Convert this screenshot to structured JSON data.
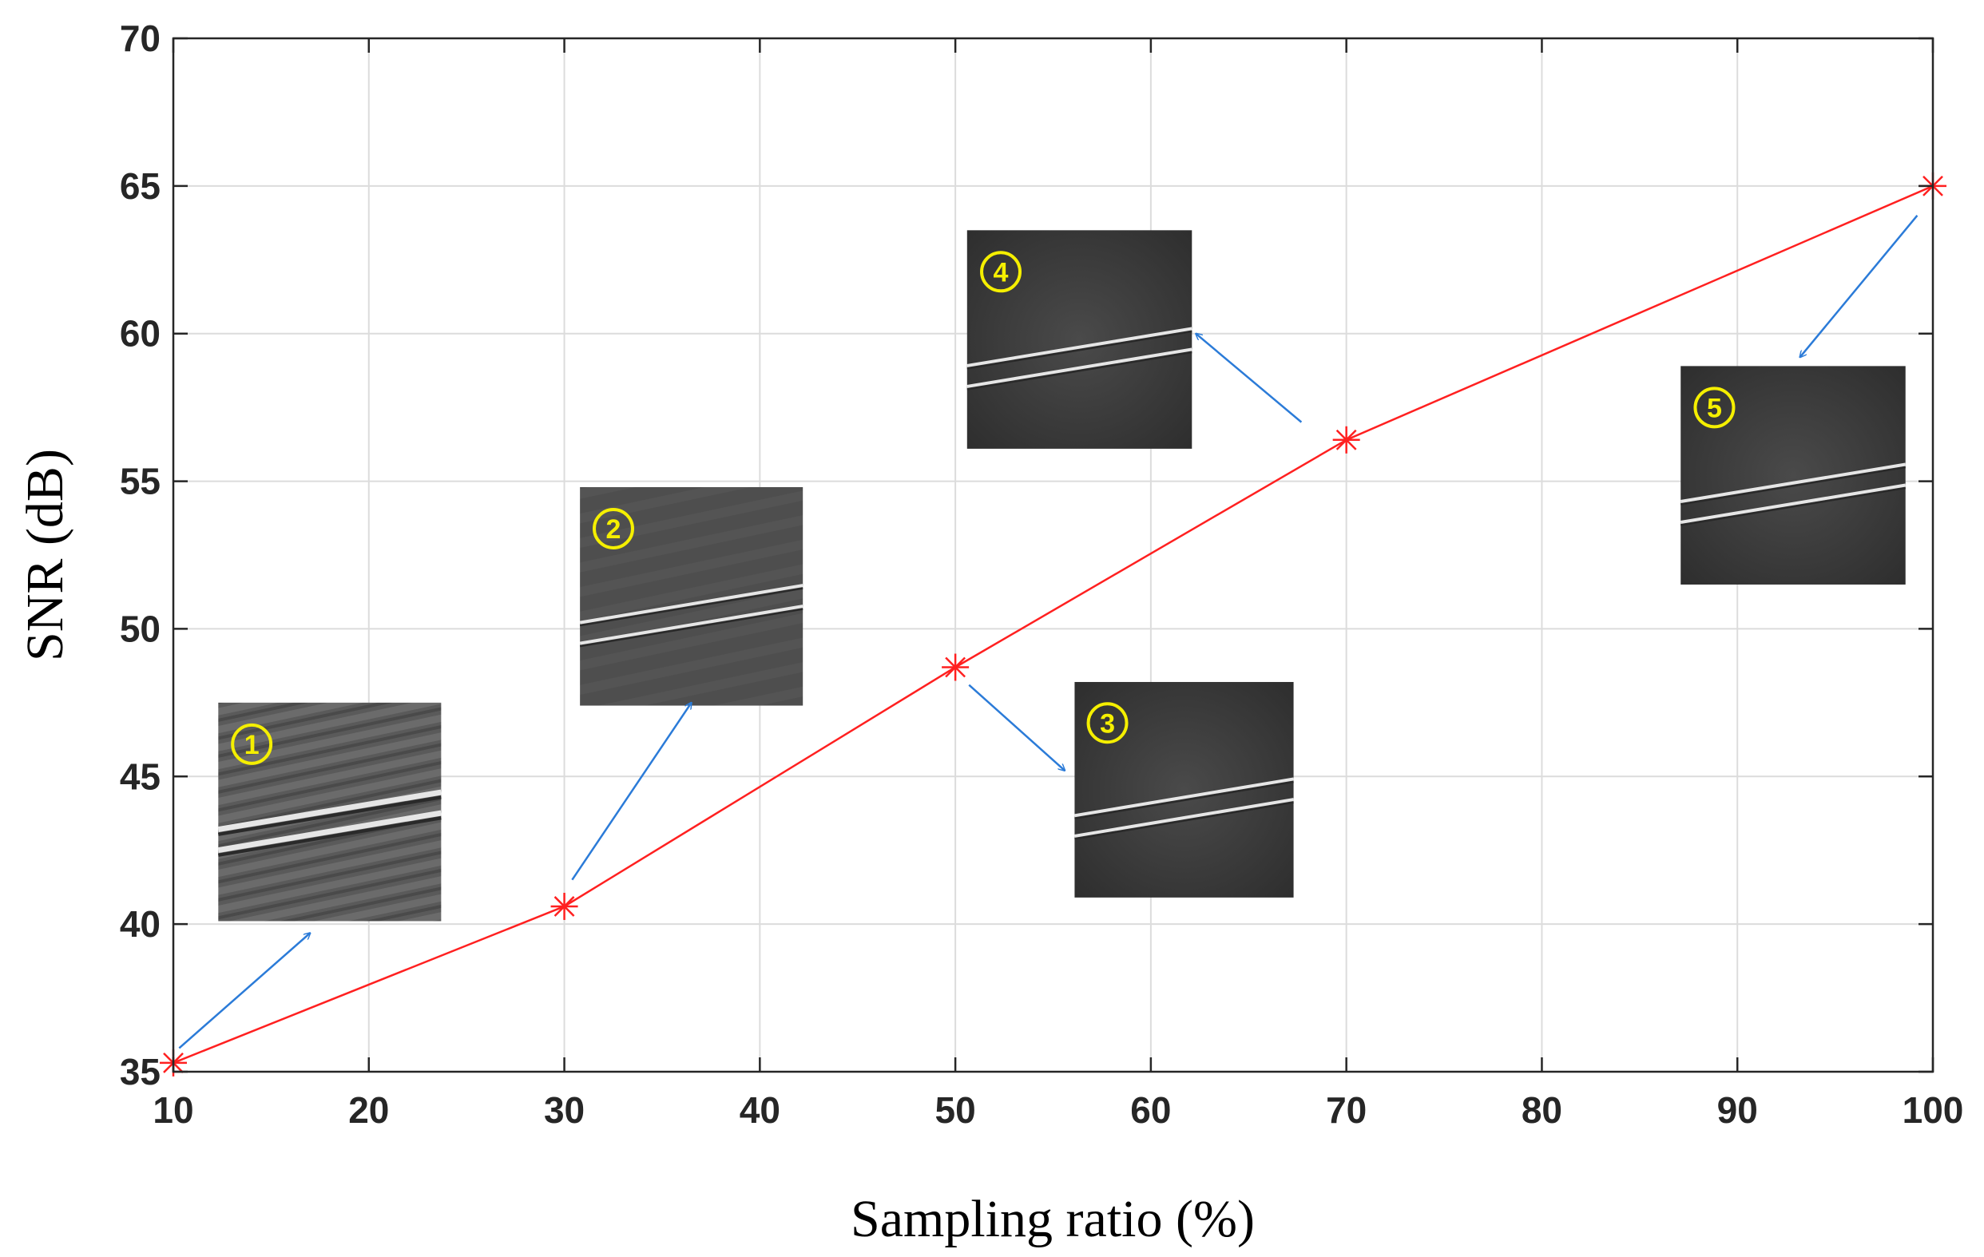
{
  "chart_data": {
    "type": "line",
    "title": "",
    "xlabel": "Sampling ratio (%)",
    "ylabel": "SNR (dB)",
    "xlim": [
      10,
      100
    ],
    "ylim": [
      35,
      70
    ],
    "xticks": [
      10,
      20,
      30,
      40,
      50,
      60,
      70,
      80,
      90,
      100
    ],
    "yticks": [
      35,
      40,
      45,
      50,
      55,
      60,
      65,
      70
    ],
    "grid": true,
    "series": [
      {
        "name": "SNR",
        "color": "#ff2020",
        "marker": "asterisk",
        "points": [
          {
            "x": 10,
            "y": 35.3
          },
          {
            "x": 30,
            "y": 40.6
          },
          {
            "x": 50,
            "y": 48.7
          },
          {
            "x": 70,
            "y": 56.4
          },
          {
            "x": 100,
            "y": 65.0
          }
        ]
      }
    ],
    "annotations": [
      {
        "label": "1",
        "point_x": 10,
        "point_y": 35.3,
        "image_x": [
          12.3,
          23.7
        ],
        "image_y": [
          40.1,
          47.5
        ],
        "arrow_from": [
          10.3,
          35.8
        ],
        "arrow_to": [
          17.0,
          39.7
        ]
      },
      {
        "label": "2",
        "point_x": 30,
        "point_y": 40.6,
        "image_x": [
          30.8,
          42.2
        ],
        "image_y": [
          47.4,
          54.8
        ],
        "arrow_from": [
          30.4,
          41.5
        ],
        "arrow_to": [
          36.5,
          47.5
        ]
      },
      {
        "label": "3",
        "point_x": 50,
        "point_y": 48.7,
        "image_x": [
          56.1,
          67.3
        ],
        "image_y": [
          40.9,
          48.2
        ],
        "arrow_from": [
          50.7,
          48.1
        ],
        "arrow_to": [
          55.6,
          45.2
        ]
      },
      {
        "label": "4",
        "point_x": 70,
        "point_y": 56.4,
        "image_x": [
          50.6,
          62.1
        ],
        "image_y": [
          56.1,
          63.5
        ],
        "arrow_from": [
          67.7,
          57.0
        ],
        "arrow_to": [
          62.3,
          60.0
        ]
      },
      {
        "label": "5",
        "point_x": 100,
        "point_y": 65.0,
        "image_x": [
          87.1,
          98.6
        ],
        "image_y": [
          51.5,
          58.9
        ],
        "arrow_from": [
          99.2,
          64.0
        ],
        "arrow_to": [
          93.2,
          59.2
        ]
      }
    ],
    "colors": {
      "axis": "#262626",
      "grid": "#dcdcdc",
      "arrow": "#2b7bd8",
      "inset_bg": "#3a3a3a",
      "inset_line": "#e6e6e6",
      "badge": "#f5ef00"
    }
  }
}
